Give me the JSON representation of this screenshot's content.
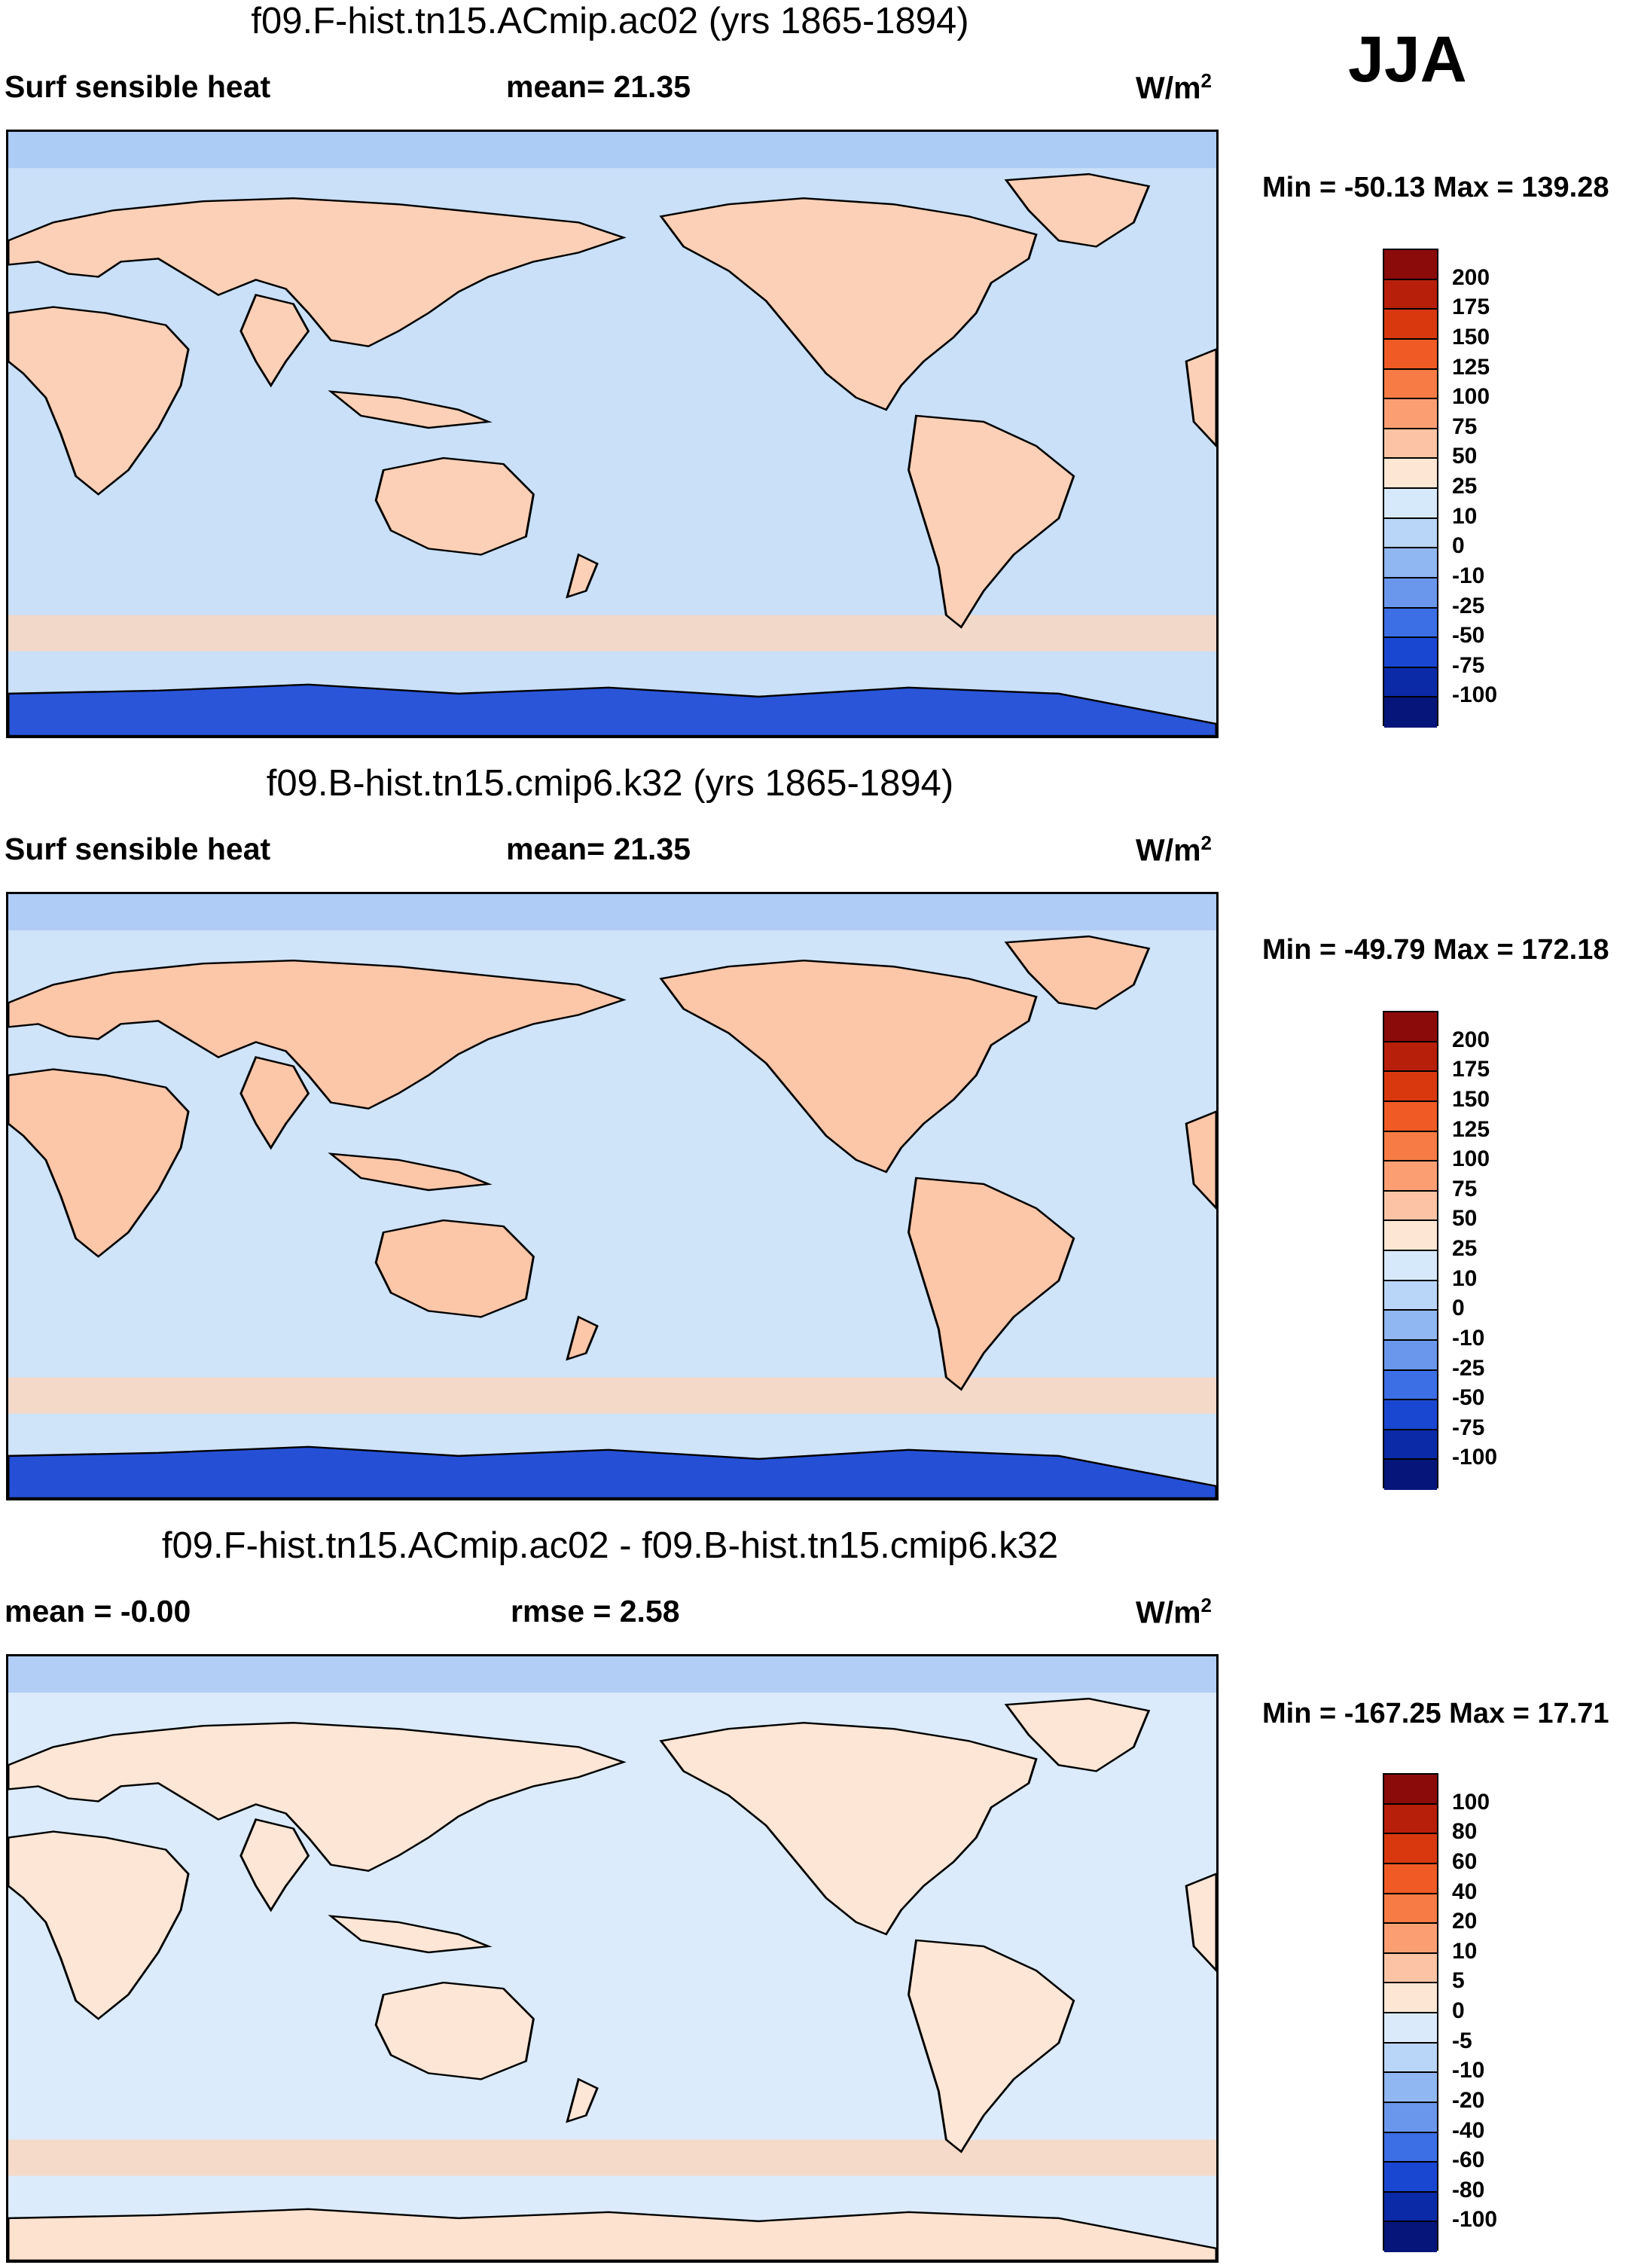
{
  "season": "JJA",
  "panels": [
    {
      "title": "f09.F-hist.tn15.ACmip.ac02 (yrs 1865-1894)",
      "left_label": "Surf sensible heat",
      "center_label": "mean=  21.35",
      "units_base": "W/m",
      "units_exp": "2",
      "minmax": "Min = -50.13 Max = 139.28",
      "colorbar_labels": [
        "200",
        "175",
        "150",
        "125",
        "100",
        "75",
        "50",
        "25",
        "10",
        "0",
        "-10",
        "-25",
        "-50",
        "-75",
        "-100"
      ],
      "colorbar_colors": [
        "#8b0b0b",
        "#b81f0a",
        "#d9380f",
        "#f05a24",
        "#f67b44",
        "#fb9f73",
        "#fcc4a4",
        "#fde7d4",
        "#d6e9fb",
        "#b9d5f7",
        "#91b7f2",
        "#6a97ec",
        "#3c6ee6",
        "#1a47d2",
        "#0b2aa8",
        "#05157a"
      ],
      "land_color": "#fcd0b6",
      "ocean_color": "#c9e0f8",
      "polar_color": "#2a55d8"
    },
    {
      "title": "f09.B-hist.tn15.cmip6.k32 (yrs 1865-1894)",
      "left_label": "Surf sensible heat",
      "center_label": "mean=  21.35",
      "units_base": "W/m",
      "units_exp": "2",
      "minmax": "Min = -49.79 Max = 172.18",
      "colorbar_labels": [
        "200",
        "175",
        "150",
        "125",
        "100",
        "75",
        "50",
        "25",
        "10",
        "0",
        "-10",
        "-25",
        "-50",
        "-75",
        "-100"
      ],
      "colorbar_colors": [
        "#8b0b0b",
        "#b81f0a",
        "#d9380f",
        "#f05a24",
        "#f67b44",
        "#fb9f73",
        "#fcc4a4",
        "#fde7d4",
        "#d6e9fb",
        "#b9d5f7",
        "#91b7f2",
        "#6a97ec",
        "#3c6ee6",
        "#1a47d2",
        "#0b2aa8",
        "#05157a"
      ],
      "land_color": "#fcc6a8",
      "ocean_color": "#cfe3f9",
      "polar_color": "#2550d6"
    },
    {
      "title": "f09.F-hist.tn15.ACmip.ac02 - f09.B-hist.tn15.cmip6.k32",
      "left_label": "mean =  -0.00",
      "center_label": "rmse =   2.58",
      "units_base": "W/m",
      "units_exp": "2",
      "minmax": "Min = -167.25 Max =  17.71",
      "colorbar_labels": [
        "100",
        "80",
        "60",
        "40",
        "20",
        "10",
        "5",
        "0",
        "-5",
        "-10",
        "-20",
        "-40",
        "-60",
        "-80",
        "-100"
      ],
      "colorbar_colors": [
        "#8b0b0b",
        "#b81f0a",
        "#d9380f",
        "#f05a24",
        "#f67b44",
        "#fb9f73",
        "#fcc4a4",
        "#fde7d4",
        "#dbeafb",
        "#b9d5f7",
        "#91b7f2",
        "#6a97ec",
        "#3c6ee6",
        "#1a47d2",
        "#0b2aa8",
        "#05157a"
      ],
      "land_color": "#fde6d6",
      "ocean_color": "#dcebfb",
      "polar_color": "#fde2cf"
    }
  ]
}
